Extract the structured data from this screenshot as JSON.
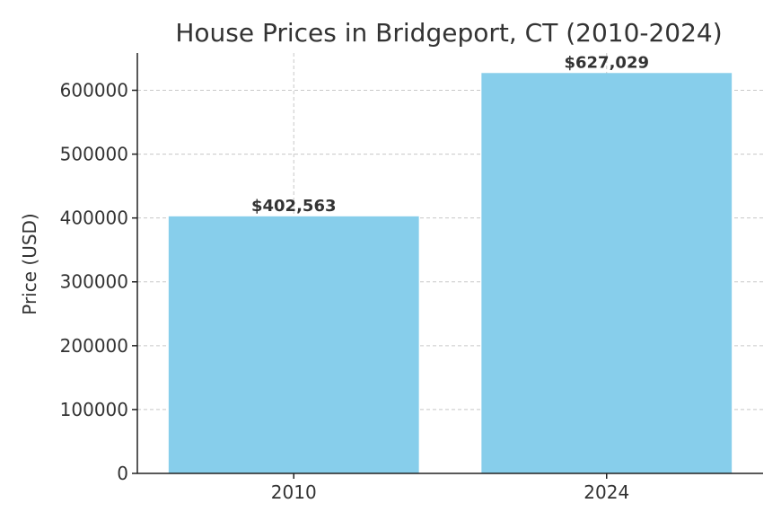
{
  "chart_data": {
    "type": "bar",
    "title": "House Prices in Bridgeport, CT (2010-2024)",
    "xlabel": "",
    "ylabel": "Price (USD)",
    "categories": [
      "2010",
      "2024"
    ],
    "values": [
      402563,
      627029
    ],
    "data_labels": [
      "$402,563",
      "$627,029"
    ],
    "yticks": [
      0,
      100000,
      200000,
      300000,
      400000,
      500000,
      600000
    ],
    "ytick_labels": [
      "0",
      "100000",
      "200000",
      "300000",
      "400000",
      "500000",
      "600000"
    ],
    "ylim": [
      0,
      658380
    ],
    "grid": true,
    "bar_color": "#87ceeb"
  }
}
